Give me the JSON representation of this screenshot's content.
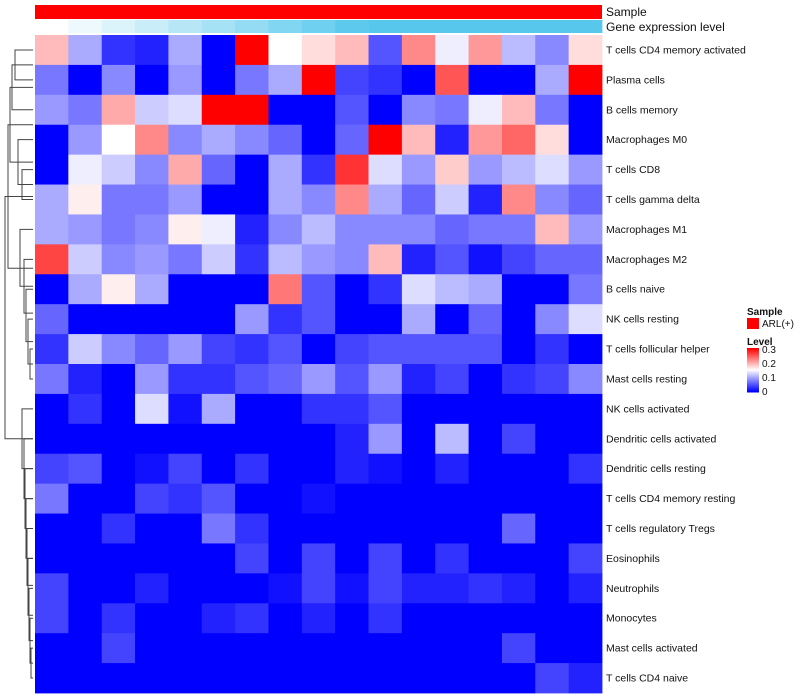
{
  "chart_data": {
    "type": "heatmap",
    "title": "",
    "annotations": {
      "sample_label": "Sample",
      "gene_label": "Gene expression level",
      "sample_color": "#ff0000",
      "gene_gradient": [
        "#ffffff",
        "#57c8ec"
      ]
    },
    "rows": [
      "T cells CD4 memory activated",
      "Plasma cells",
      "B cells memory",
      "Macrophages M0",
      "T cells CD8",
      "T cells gamma delta",
      "Macrophages M1",
      "Macrophages M2",
      "B cells naive",
      "NK cells resting",
      "T cells follicular helper",
      "Mast cells resting",
      "NK cells activated",
      "Dendritic cells activated",
      "Dendritic cells resting",
      "T cells CD4 memory resting",
      "T cells regulatory  Tregs",
      "Eosinophils",
      "Neutrophils",
      "Monocytes",
      "Mast cells activated",
      "T cells CD4 naive"
    ],
    "columns": 17,
    "values": [
      [
        0.19,
        0.1,
        0.03,
        0.02,
        0.1,
        0.0,
        0.3,
        0.15,
        0.17,
        0.19,
        0.05,
        0.22,
        0.14,
        0.21,
        0.11,
        0.08,
        0.17
      ],
      [
        0.07,
        0.0,
        0.08,
        0.0,
        0.09,
        0.0,
        0.07,
        0.1,
        0.3,
        0.04,
        0.03,
        0.0,
        0.25,
        0.0,
        0.0,
        0.1,
        0.3
      ],
      [
        0.09,
        0.07,
        0.2,
        0.12,
        0.13,
        0.3,
        0.3,
        0.0,
        0.0,
        0.05,
        0.0,
        0.08,
        0.07,
        0.14,
        0.19,
        0.07,
        0.0
      ],
      [
        0.0,
        0.09,
        0.15,
        0.22,
        0.08,
        0.1,
        0.08,
        0.06,
        0.0,
        0.06,
        0.3,
        0.19,
        0.02,
        0.21,
        0.24,
        0.17,
        0.0
      ],
      [
        0.0,
        0.14,
        0.12,
        0.08,
        0.2,
        0.06,
        0.0,
        0.1,
        0.03,
        0.27,
        0.13,
        0.09,
        0.18,
        0.09,
        0.11,
        0.13,
        0.09
      ],
      [
        0.1,
        0.16,
        0.07,
        0.07,
        0.09,
        0.0,
        0.0,
        0.1,
        0.08,
        0.22,
        0.1,
        0.06,
        0.12,
        0.02,
        0.22,
        0.08,
        0.06
      ],
      [
        0.1,
        0.09,
        0.07,
        0.08,
        0.16,
        0.14,
        0.02,
        0.08,
        0.11,
        0.08,
        0.08,
        0.08,
        0.06,
        0.07,
        0.07,
        0.19,
        0.09
      ],
      [
        0.26,
        0.12,
        0.08,
        0.09,
        0.07,
        0.12,
        0.03,
        0.11,
        0.09,
        0.08,
        0.19,
        0.02,
        0.05,
        0.01,
        0.04,
        0.06,
        0.06
      ],
      [
        0.0,
        0.1,
        0.16,
        0.1,
        0.0,
        0.0,
        0.0,
        0.23,
        0.05,
        0.0,
        0.03,
        0.13,
        0.11,
        0.1,
        0.0,
        0.0,
        0.07
      ],
      [
        0.06,
        0.0,
        0.0,
        0.0,
        0.0,
        0.0,
        0.09,
        0.03,
        0.05,
        0.0,
        0.0,
        0.1,
        0.0,
        0.06,
        0.0,
        0.08,
        0.13
      ],
      [
        0.03,
        0.12,
        0.08,
        0.06,
        0.09,
        0.04,
        0.03,
        0.05,
        0.0,
        0.04,
        0.05,
        0.05,
        0.05,
        0.05,
        0.0,
        0.03,
        0.0
      ],
      [
        0.07,
        0.02,
        0.0,
        0.09,
        0.03,
        0.03,
        0.05,
        0.06,
        0.09,
        0.05,
        0.09,
        0.02,
        0.04,
        0.0,
        0.03,
        0.04,
        0.08
      ],
      [
        0.0,
        0.03,
        0.0,
        0.13,
        0.01,
        0.1,
        0.0,
        0.0,
        0.03,
        0.03,
        0.05,
        0.0,
        0.0,
        0.0,
        0.0,
        0.0,
        0.0
      ],
      [
        0.0,
        0.0,
        0.0,
        0.0,
        0.0,
        0.0,
        0.0,
        0.0,
        0.0,
        0.02,
        0.09,
        0.0,
        0.11,
        0.0,
        0.04,
        0.0,
        0.0
      ],
      [
        0.04,
        0.05,
        0.0,
        0.01,
        0.04,
        0.0,
        0.03,
        0.0,
        0.0,
        0.02,
        0.01,
        0.0,
        0.02,
        0.0,
        0.0,
        0.0,
        0.03
      ],
      [
        0.07,
        0.0,
        0.0,
        0.04,
        0.03,
        0.05,
        0.0,
        0.0,
        0.01,
        0.0,
        0.0,
        0.0,
        0.0,
        0.0,
        0.0,
        0.0,
        0.0
      ],
      [
        0.0,
        0.0,
        0.03,
        0.0,
        0.0,
        0.07,
        0.03,
        0.0,
        0.0,
        0.0,
        0.0,
        0.0,
        0.0,
        0.0,
        0.06,
        0.0,
        0.0
      ],
      [
        0.0,
        0.0,
        0.0,
        0.0,
        0.0,
        0.0,
        0.04,
        0.0,
        0.04,
        0.0,
        0.04,
        0.0,
        0.03,
        0.0,
        0.0,
        0.0,
        0.04
      ],
      [
        0.04,
        0.0,
        0.0,
        0.02,
        0.0,
        0.0,
        0.0,
        0.01,
        0.04,
        0.01,
        0.04,
        0.02,
        0.02,
        0.03,
        0.02,
        0.0,
        0.02
      ],
      [
        0.04,
        0.0,
        0.03,
        0.0,
        0.0,
        0.02,
        0.03,
        0.0,
        0.02,
        0.0,
        0.03,
        0.0,
        0.0,
        0.0,
        0.0,
        0.0,
        0.0
      ],
      [
        0.0,
        0.0,
        0.04,
        0.0,
        0.0,
        0.0,
        0.0,
        0.0,
        0.0,
        0.0,
        0.0,
        0.0,
        0.0,
        0.0,
        0.04,
        0.0,
        0.0
      ],
      [
        0.0,
        0.0,
        0.0,
        0.0,
        0.0,
        0.0,
        0.0,
        0.0,
        0.0,
        0.0,
        0.0,
        0.0,
        0.0,
        0.0,
        0.0,
        0.04,
        0.02
      ]
    ],
    "color_scale": {
      "min": 0,
      "mid": 0.15,
      "max": 0.3,
      "low": "#0000ff",
      "mid_color": "#ffffff",
      "high": "#ff0000"
    },
    "legend": {
      "sample_title": "Sample",
      "sample_entry": "ARL(+)",
      "level_title": "Level",
      "level_ticks": [
        "0.3",
        "0.2",
        "0.1",
        "0"
      ],
      "placement": "right"
    },
    "row_dendrogram": true
  }
}
